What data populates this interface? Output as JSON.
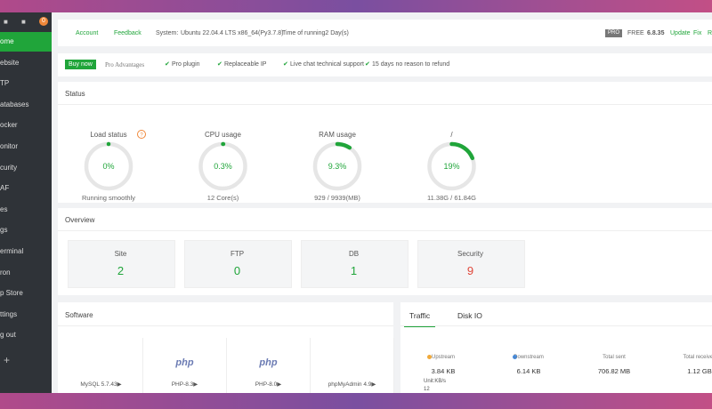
{
  "sidebar": {
    "badge": "0",
    "items": [
      "ome",
      "ebsite",
      "TP",
      "atabases",
      "ocker",
      "onitor",
      "curity",
      "AF",
      "es",
      "gs",
      "erminal",
      "ron",
      "p Store",
      "ttings",
      "g out"
    ],
    "add": "+"
  },
  "topbar": {
    "account": "Account",
    "feedback": "Feedback",
    "system_label": "System:",
    "system": "Ubuntu 22.04.4 LTS x86_64(Py3.7.8)",
    "uptime": "Time of running2 Day(s)",
    "pro": "PRO",
    "edition": "FREE",
    "version": "6.8.35",
    "update": "Update",
    "fix": "Fix",
    "more": "R"
  },
  "promo": {
    "buy": "Buy now",
    "advantages": "Pro Advantages",
    "features": [
      "Pro plugin",
      "Replaceable IP",
      "Live chat technical support",
      "15 days no reason to refund"
    ]
  },
  "status": {
    "title": "Status",
    "gauges": [
      {
        "name": "Load status",
        "percent": 0,
        "percent_label": "0%",
        "detail": "Running smoothly",
        "help": "?"
      },
      {
        "name": "CPU usage",
        "percent": 0.3,
        "percent_label": "0.3%",
        "detail": "12 Core(s)"
      },
      {
        "name": "RAM usage",
        "percent": 9.3,
        "percent_label": "9.3%",
        "detail": "929 / 9939(MB)"
      },
      {
        "name": "/",
        "percent": 19,
        "percent_label": "19%",
        "detail": "11.38G / 61.84G"
      }
    ]
  },
  "overview": {
    "title": "Overview",
    "cards": [
      {
        "label": "Site",
        "value": "2"
      },
      {
        "label": "FTP",
        "value": "0"
      },
      {
        "label": "DB",
        "value": "1"
      },
      {
        "label": "Security",
        "value": "9"
      }
    ]
  },
  "software": {
    "title": "Software",
    "items": [
      {
        "icon": "",
        "name": "MySQL 5.7.43▶"
      },
      {
        "icon": "php",
        "name": "PHP-8.3▶"
      },
      {
        "icon": "php",
        "name": "PHP-8.0▶"
      },
      {
        "icon": "",
        "name": "phpMyAdmin 4.9▶"
      }
    ]
  },
  "traffic": {
    "tabs": [
      "Traffic",
      "Disk IO"
    ],
    "stats": [
      {
        "label": "Upstream",
        "value": "3.84 KB"
      },
      {
        "label": "Downstream",
        "value": "6.14 KB"
      },
      {
        "label": "Total sent",
        "value": "706.82 MB"
      },
      {
        "label": "Total received",
        "value": "1.12 GB"
      }
    ],
    "unit": "Unit:KB/s",
    "axis_top": "12"
  }
}
